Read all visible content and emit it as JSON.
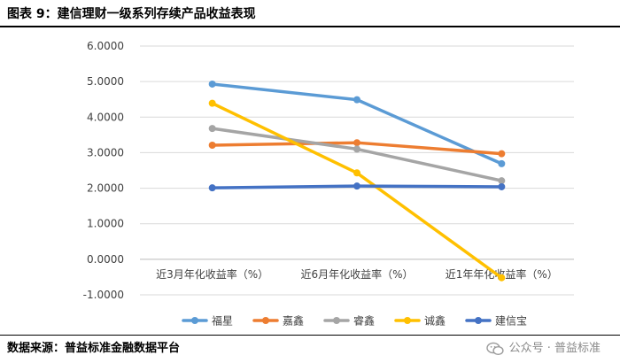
{
  "figure": {
    "title": "图表 9：建信理财一级系列存续产品收益表现",
    "source": "数据来源：普益标准金融数据平台",
    "watermark": "公众号 · 普益标准"
  },
  "chart_data": {
    "type": "line",
    "title": "",
    "xlabel": "",
    "ylabel": "",
    "categories": [
      "近3月年化收益率（%）",
      "近6月年化收益率（%）",
      "近1年年化收益率（%）"
    ],
    "ylim": [
      -1,
      6
    ],
    "yticks": [
      -1,
      0,
      1,
      2,
      3,
      4,
      5,
      6
    ],
    "ytick_labels": [
      "-1.0000",
      "0.0000",
      "1.0000",
      "2.0000",
      "3.0000",
      "4.0000",
      "5.0000",
      "6.0000"
    ],
    "grid": true,
    "legend_position": "bottom",
    "series": [
      {
        "name": "福星",
        "color": "#5B9BD5",
        "values": [
          4.93,
          4.49,
          2.69
        ]
      },
      {
        "name": "嘉鑫",
        "color": "#ED7D31",
        "values": [
          3.21,
          3.28,
          2.97
        ]
      },
      {
        "name": "睿鑫",
        "color": "#A5A5A5",
        "values": [
          3.68,
          3.1,
          2.21
        ]
      },
      {
        "name": "诚鑫",
        "color": "#FFC000",
        "values": [
          4.39,
          2.43,
          -0.52
        ]
      },
      {
        "name": "建信宝",
        "color": "#4472C4",
        "values": [
          2.01,
          2.06,
          2.04
        ]
      }
    ]
  }
}
